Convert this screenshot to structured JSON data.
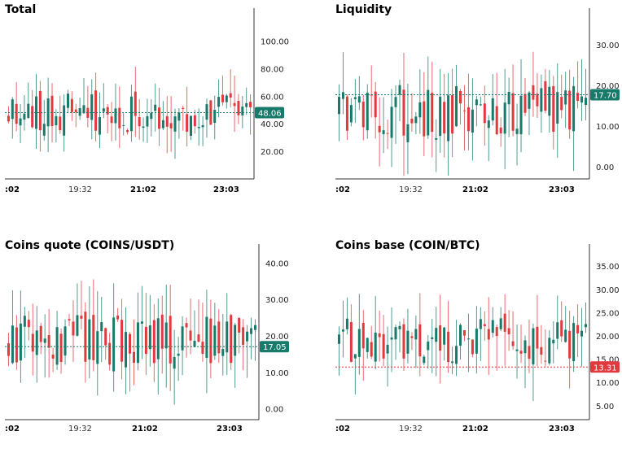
{
  "colors": {
    "up": "#187a6a",
    "down": "#e0393e",
    "axis": "#333333"
  },
  "x_ticks": [
    ":02",
    "19:32",
    "21:02",
    "23:03"
  ],
  "x_tick_bold": [
    true,
    false,
    true,
    true
  ],
  "chart_data": [
    {
      "type": "candlestick",
      "title": "Total",
      "y_ticks": [
        "20.00",
        "40.00",
        "60.00",
        "80.00",
        "100.00"
      ],
      "ylim": [
        0,
        118
      ],
      "last_value": "48.06",
      "last_color": "up",
      "seed": 11,
      "base": 48,
      "amp": 14,
      "wick": 20
    },
    {
      "type": "candlestick",
      "title": "Liquidity",
      "y_ticks": [
        "0.00",
        "10.00",
        "20.00",
        "30.00"
      ],
      "ylim": [
        -3,
        37
      ],
      "last_value": "17.70",
      "last_color": "up",
      "seed": 27,
      "base": 14,
      "amp": 7,
      "wick": 10
    },
    {
      "type": "candlestick",
      "title": "Coins quote (COINS/USDT)",
      "y_ticks": [
        "0.00",
        "10.00",
        "20.00",
        "30.00",
        "40.00"
      ],
      "ylim": [
        -3,
        43
      ],
      "last_value": "17.05",
      "last_color": "up",
      "seed": 43,
      "base": 19,
      "amp": 7,
      "wick": 11
    },
    {
      "type": "candlestick",
      "title": "Coins base (COIN/BTC)",
      "y_ticks": [
        "5.00",
        "10.00",
        "15.00",
        "20.00",
        "25.00",
        "30.00",
        "35.00"
      ],
      "ylim": [
        2,
        38
      ],
      "last_value": "13.31",
      "last_color": "down",
      "seed": 59,
      "base": 19,
      "amp": 5,
      "wick": 8
    }
  ]
}
